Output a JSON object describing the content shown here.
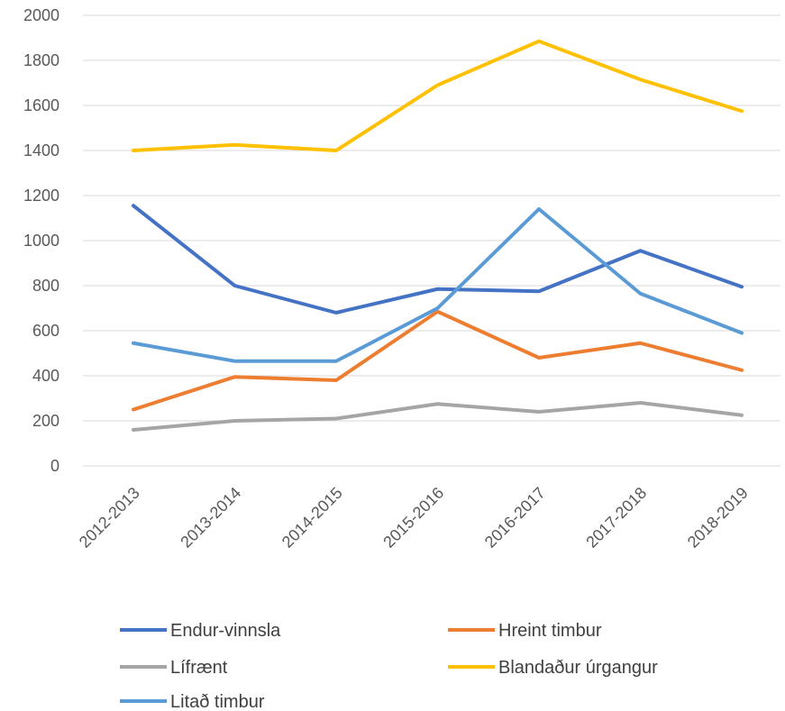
{
  "chart_data": {
    "type": "line",
    "categories": [
      "2012-2013",
      "2013-2014",
      "2014-2015",
      "2015-2016",
      "2016-2017",
      "2017-2018",
      "2018-2019"
    ],
    "ylim": [
      0,
      2000
    ],
    "yticks": [
      0,
      200,
      400,
      600,
      800,
      1000,
      1200,
      1400,
      1600,
      1800,
      2000
    ],
    "grid": true,
    "legend_position": "bottom",
    "series": [
      {
        "name": "Endur-vinnsla",
        "color": "#4472C4",
        "values": [
          1155,
          800,
          680,
          785,
          775,
          955,
          795
        ]
      },
      {
        "name": "Hreint timbur",
        "color": "#ED7D31",
        "values": [
          250,
          395,
          380,
          685,
          480,
          545,
          425
        ]
      },
      {
        "name": "Lífrænt",
        "color": "#A5A5A5",
        "values": [
          160,
          200,
          210,
          275,
          240,
          280,
          225
        ]
      },
      {
        "name": "Blandaður úrgangur",
        "color": "#FFC000",
        "values": [
          1400,
          1425,
          1400,
          1690,
          1885,
          1715,
          1575
        ]
      },
      {
        "name": "Litað timbur",
        "color": "#5B9BD5",
        "values": [
          545,
          465,
          465,
          700,
          1140,
          765,
          590
        ]
      }
    ]
  }
}
